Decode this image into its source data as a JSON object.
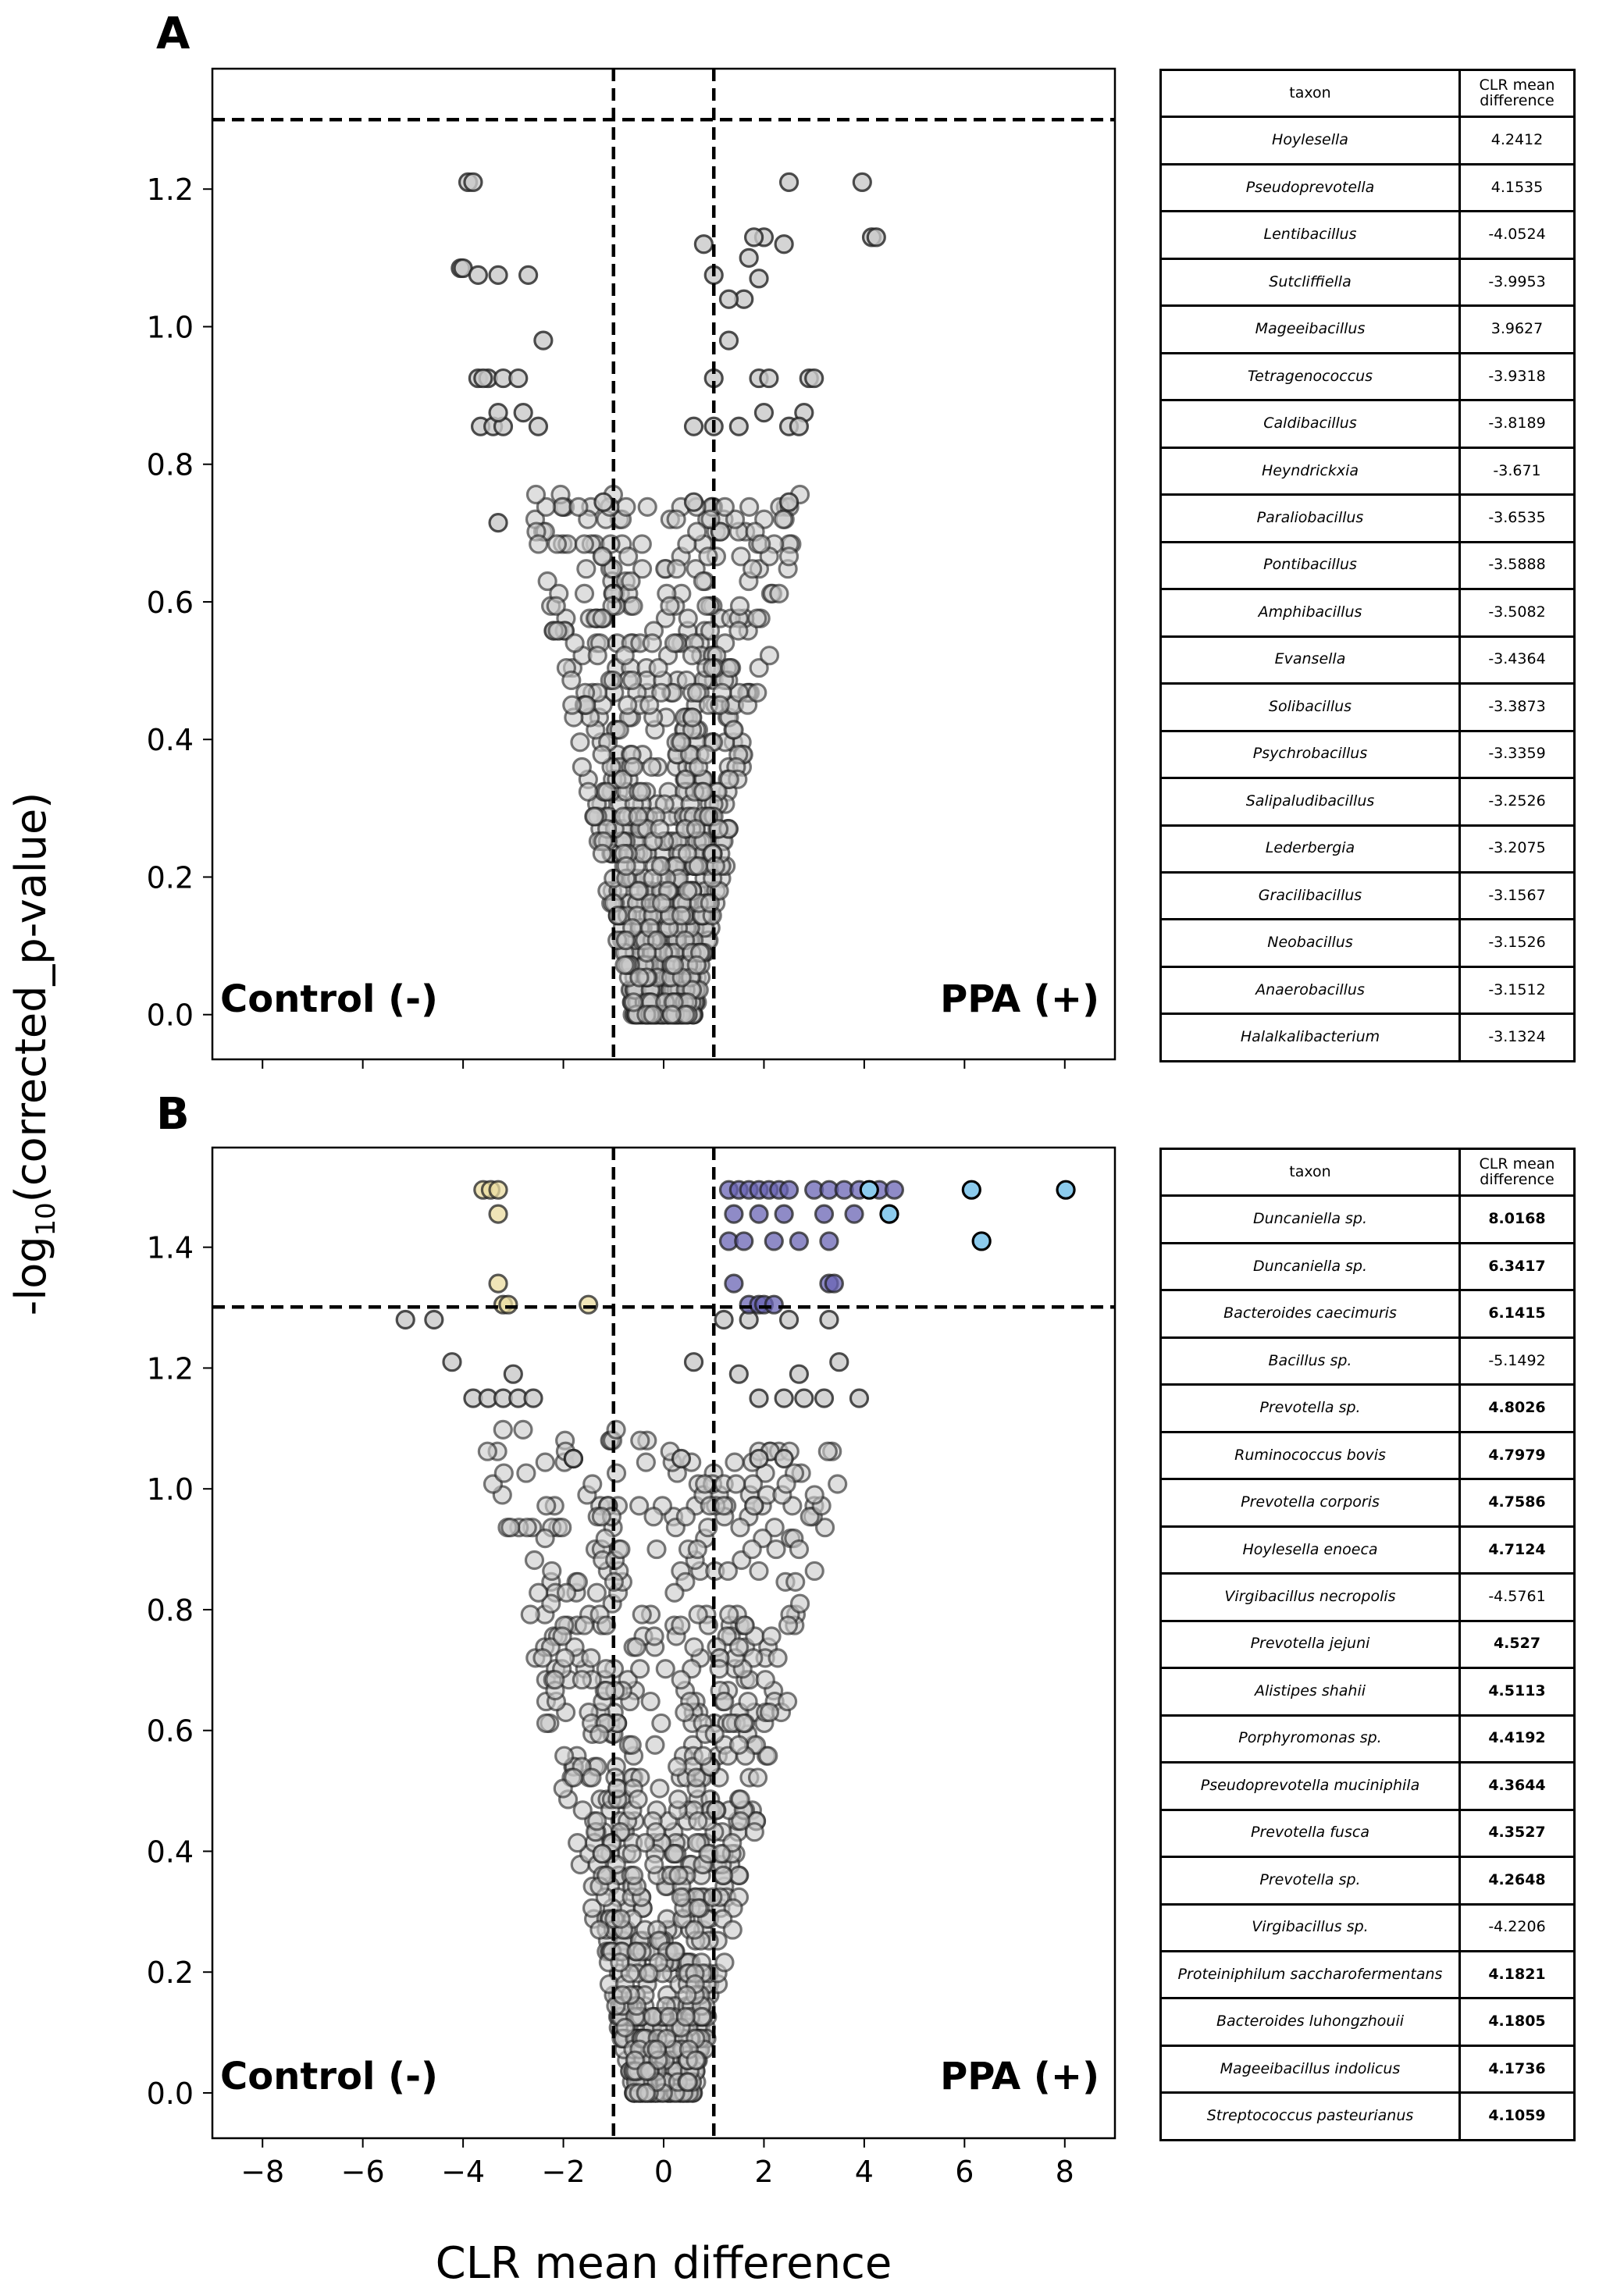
{
  "figure": {
    "ylabel_main": "-log",
    "ylabel_sub": "10",
    "ylabel_tail": "(corrected_p-value)",
    "xlabel": "CLR mean difference",
    "colors": {
      "grey_fill": "#c9c9c9",
      "grey_edge": "#222222",
      "yellow_fill": "#ebdca0",
      "purple_fill": "#6a64b4",
      "lightblue_fill": "#8ccbed",
      "line": "#000000"
    }
  },
  "chart_data": [
    {
      "type": "scatter",
      "panel_label": "A",
      "title": "",
      "xlabel": "CLR mean difference",
      "ylabel": "-log10(corrected_p-value)",
      "xlim": [
        -9,
        9
      ],
      "ylim": [
        -0.065,
        1.375
      ],
      "yticks": [
        0.0,
        0.2,
        0.4,
        0.6,
        0.8,
        1.0,
        1.2
      ],
      "ytick_labels": [
        "0.0",
        "0.2",
        "0.4",
        "0.6",
        "0.8",
        "1.0",
        "1.2"
      ],
      "vlines": [
        -1,
        1
      ],
      "hline": 1.301,
      "left_annotation": "Control (-)",
      "right_annotation": "PPA (+)",
      "highlight_points": [
        {
          "x": -3.9,
          "y": 1.21
        },
        {
          "x": -3.8,
          "y": 1.21
        },
        {
          "x": 3.96,
          "y": 1.21
        },
        {
          "x": 2.5,
          "y": 1.21
        },
        {
          "x": 4.15,
          "y": 1.13
        },
        {
          "x": 4.24,
          "y": 1.13
        },
        {
          "x": 2.0,
          "y": 1.13
        },
        {
          "x": 1.8,
          "y": 1.13
        },
        {
          "x": 2.4,
          "y": 1.12
        },
        {
          "x": -4.05,
          "y": 1.085
        },
        {
          "x": -4.0,
          "y": 1.085
        },
        {
          "x": -3.7,
          "y": 1.075
        },
        {
          "x": -3.3,
          "y": 1.075
        },
        {
          "x": -2.7,
          "y": 1.075
        },
        {
          "x": 1.7,
          "y": 1.1
        },
        {
          "x": 1.9,
          "y": 1.07
        },
        {
          "x": 1.6,
          "y": 1.04
        },
        {
          "x": 1.0,
          "y": 1.075
        },
        {
          "x": 0.8,
          "y": 1.12
        },
        {
          "x": -2.4,
          "y": 0.98
        },
        {
          "x": 1.3,
          "y": 1.04
        },
        {
          "x": 1.3,
          "y": 0.98
        },
        {
          "x": -3.7,
          "y": 0.925
        },
        {
          "x": -3.5,
          "y": 0.925
        },
        {
          "x": -3.2,
          "y": 0.925
        },
        {
          "x": -3.6,
          "y": 0.925
        },
        {
          "x": -2.9,
          "y": 0.925
        },
        {
          "x": 2.9,
          "y": 0.925
        },
        {
          "x": 3.0,
          "y": 0.925
        },
        {
          "x": 1.9,
          "y": 0.925
        },
        {
          "x": 2.1,
          "y": 0.925
        },
        {
          "x": 1.0,
          "y": 0.925
        },
        {
          "x": -3.65,
          "y": 0.855
        },
        {
          "x": -3.4,
          "y": 0.855
        },
        {
          "x": -3.2,
          "y": 0.855
        },
        {
          "x": -2.5,
          "y": 0.855
        },
        {
          "x": -3.3,
          "y": 0.875
        },
        {
          "x": -2.8,
          "y": 0.875
        },
        {
          "x": 2.0,
          "y": 0.875
        },
        {
          "x": 2.8,
          "y": 0.875
        },
        {
          "x": 0.6,
          "y": 0.855
        },
        {
          "x": 1.0,
          "y": 0.855
        },
        {
          "x": 1.5,
          "y": 0.855
        },
        {
          "x": 2.5,
          "y": 0.855
        },
        {
          "x": 2.7,
          "y": 0.855
        },
        {
          "x": -3.3,
          "y": 0.715
        },
        {
          "x": -1.2,
          "y": 0.745
        },
        {
          "x": 0.6,
          "y": 0.745
        },
        {
          "x": 2.5,
          "y": 0.745
        }
      ],
      "table": {
        "headers": [
          "taxon",
          "CLR mean\ndifference"
        ],
        "rows": [
          [
            "Hoylesella",
            "4.2412"
          ],
          [
            "Pseudoprevotella",
            "4.1535"
          ],
          [
            "Lentibacillus",
            "-4.0524"
          ],
          [
            "Sutcliffiella",
            "-3.9953"
          ],
          [
            "Mageeibacillus",
            "3.9627"
          ],
          [
            "Tetragenococcus",
            "-3.9318"
          ],
          [
            "Caldibacillus",
            "-3.8189"
          ],
          [
            "Heyndrickxia",
            "-3.671"
          ],
          [
            "Paraliobacillus",
            "-3.6535"
          ],
          [
            "Pontibacillus",
            "-3.5888"
          ],
          [
            "Amphibacillus",
            "-3.5082"
          ],
          [
            "Evansella",
            "-3.4364"
          ],
          [
            "Solibacillus",
            "-3.3873"
          ],
          [
            "Psychrobacillus",
            "-3.3359"
          ],
          [
            "Salipaludibacillus",
            "-3.2526"
          ],
          [
            "Lederbergia",
            "-3.2075"
          ],
          [
            "Gracilibacillus",
            "-3.1567"
          ],
          [
            "Neobacillus",
            "-3.1526"
          ],
          [
            "Anaerobacillus",
            "-3.1512"
          ],
          [
            "Halalkalibacterium",
            "-3.1324"
          ]
        ],
        "bold": []
      }
    },
    {
      "type": "scatter",
      "panel_label": "B",
      "title": "",
      "xlabel": "CLR mean difference",
      "ylabel": "-log10(corrected_p-value)",
      "xlim": [
        -9,
        9
      ],
      "ylim": [
        -0.075,
        1.565
      ],
      "xticks": [
        -8,
        -6,
        -4,
        -2,
        0,
        2,
        4,
        6,
        8
      ],
      "xtick_labels": [
        "−8",
        "−6",
        "−4",
        "−2",
        "0",
        "2",
        "4",
        "6",
        "8"
      ],
      "yticks": [
        0.0,
        0.2,
        0.4,
        0.6,
        0.8,
        1.0,
        1.2,
        1.4
      ],
      "ytick_labels": [
        "0.0",
        "0.2",
        "0.4",
        "0.6",
        "0.8",
        "1.0",
        "1.2",
        "1.4"
      ],
      "vlines": [
        -1,
        1
      ],
      "hline": 1.301,
      "left_annotation": "Control (-)",
      "right_annotation": "PPA (+)",
      "yellow_points": [
        {
          "x": -3.6,
          "y": 1.495
        },
        {
          "x": -3.45,
          "y": 1.495
        },
        {
          "x": -3.3,
          "y": 1.495
        },
        {
          "x": -3.3,
          "y": 1.455
        },
        {
          "x": -3.3,
          "y": 1.34
        },
        {
          "x": -3.2,
          "y": 1.305
        },
        {
          "x": -3.1,
          "y": 1.305
        },
        {
          "x": -1.5,
          "y": 1.305
        }
      ],
      "purple_points": [
        {
          "x": 1.3,
          "y": 1.495
        },
        {
          "x": 1.5,
          "y": 1.495
        },
        {
          "x": 1.7,
          "y": 1.495
        },
        {
          "x": 1.9,
          "y": 1.495
        },
        {
          "x": 2.1,
          "y": 1.495
        },
        {
          "x": 2.3,
          "y": 1.495
        },
        {
          "x": 2.5,
          "y": 1.495
        },
        {
          "x": 3.0,
          "y": 1.495
        },
        {
          "x": 3.3,
          "y": 1.495
        },
        {
          "x": 3.6,
          "y": 1.495
        },
        {
          "x": 3.9,
          "y": 1.495
        },
        {
          "x": 4.3,
          "y": 1.495
        },
        {
          "x": 4.6,
          "y": 1.495
        },
        {
          "x": 1.4,
          "y": 1.455
        },
        {
          "x": 1.9,
          "y": 1.455
        },
        {
          "x": 2.4,
          "y": 1.455
        },
        {
          "x": 3.2,
          "y": 1.455
        },
        {
          "x": 3.8,
          "y": 1.455
        },
        {
          "x": 1.3,
          "y": 1.41
        },
        {
          "x": 1.6,
          "y": 1.41
        },
        {
          "x": 2.2,
          "y": 1.41
        },
        {
          "x": 2.7,
          "y": 1.41
        },
        {
          "x": 3.3,
          "y": 1.41
        },
        {
          "x": 1.4,
          "y": 1.34
        },
        {
          "x": 3.3,
          "y": 1.34
        },
        {
          "x": 3.4,
          "y": 1.34
        },
        {
          "x": 1.7,
          "y": 1.305
        },
        {
          "x": 1.9,
          "y": 1.305
        },
        {
          "x": 2.0,
          "y": 1.305
        },
        {
          "x": 2.2,
          "y": 1.305
        }
      ],
      "lightblue_points": [
        {
          "x": 8.02,
          "y": 1.495
        },
        {
          "x": 6.14,
          "y": 1.495
        },
        {
          "x": 4.1,
          "y": 1.495
        },
        {
          "x": 4.5,
          "y": 1.455
        },
        {
          "x": 6.34,
          "y": 1.41
        }
      ],
      "highlight_points": [
        {
          "x": -5.15,
          "y": 1.28
        },
        {
          "x": -4.58,
          "y": 1.28
        },
        {
          "x": -4.22,
          "y": 1.21
        },
        {
          "x": -3.0,
          "y": 1.19
        },
        {
          "x": -3.8,
          "y": 1.15
        },
        {
          "x": -3.5,
          "y": 1.15
        },
        {
          "x": -3.2,
          "y": 1.15
        },
        {
          "x": -2.9,
          "y": 1.15
        },
        {
          "x": -2.6,
          "y": 1.15
        },
        {
          "x": 1.2,
          "y": 1.28
        },
        {
          "x": 1.7,
          "y": 1.28
        },
        {
          "x": 2.5,
          "y": 1.28
        },
        {
          "x": 3.3,
          "y": 1.28
        },
        {
          "x": 0.6,
          "y": 1.21
        },
        {
          "x": 1.5,
          "y": 1.19
        },
        {
          "x": 2.7,
          "y": 1.19
        },
        {
          "x": 3.5,
          "y": 1.21
        },
        {
          "x": 1.9,
          "y": 1.15
        },
        {
          "x": 2.4,
          "y": 1.15
        },
        {
          "x": 2.8,
          "y": 1.15
        },
        {
          "x": 3.2,
          "y": 1.15
        },
        {
          "x": 3.9,
          "y": 1.15
        },
        {
          "x": -1.8,
          "y": 1.05
        },
        {
          "x": -1.8,
          "y": 1.05
        },
        {
          "x": 0.35,
          "y": 1.05
        },
        {
          "x": 1.9,
          "y": 1.05
        },
        {
          "x": 2.4,
          "y": 1.05
        }
      ],
      "table": {
        "headers": [
          "taxon",
          "CLR mean\ndifference"
        ],
        "rows": [
          [
            "Duncaniella sp.",
            "8.0168"
          ],
          [
            "Duncaniella sp.",
            "6.3417"
          ],
          [
            "Bacteroides caecimuris",
            "6.1415"
          ],
          [
            "Bacillus sp.",
            "-5.1492"
          ],
          [
            "Prevotella sp.",
            "4.8026"
          ],
          [
            "Ruminococcus bovis",
            "4.7979"
          ],
          [
            "Prevotella corporis",
            "4.7586"
          ],
          [
            "Hoylesella enoeca",
            "4.7124"
          ],
          [
            "Virgibacillus necropolis",
            "-4.5761"
          ],
          [
            "Prevotella jejuni",
            "4.527"
          ],
          [
            "Alistipes shahii",
            "4.5113"
          ],
          [
            "Porphyromonas sp.",
            "4.4192"
          ],
          [
            "Pseudoprevotella muciniphila",
            "4.3644"
          ],
          [
            "Prevotella fusca",
            "4.3527"
          ],
          [
            "Prevotella sp.",
            "4.2648"
          ],
          [
            "Virgibacillus sp.",
            "-4.2206"
          ],
          [
            "Proteiniphilum saccharofermentans",
            "4.1821"
          ],
          [
            "Bacteroides luhongzhouii",
            "4.1805"
          ],
          [
            "Mageeibacillus indolicus",
            "4.1736"
          ],
          [
            "Streptococcus pasteurianus",
            "4.1059"
          ]
        ],
        "bold": [
          0,
          1,
          2,
          4,
          5,
          6,
          7,
          9,
          10,
          11,
          12,
          13,
          14,
          16,
          17,
          18,
          19
        ]
      }
    }
  ]
}
